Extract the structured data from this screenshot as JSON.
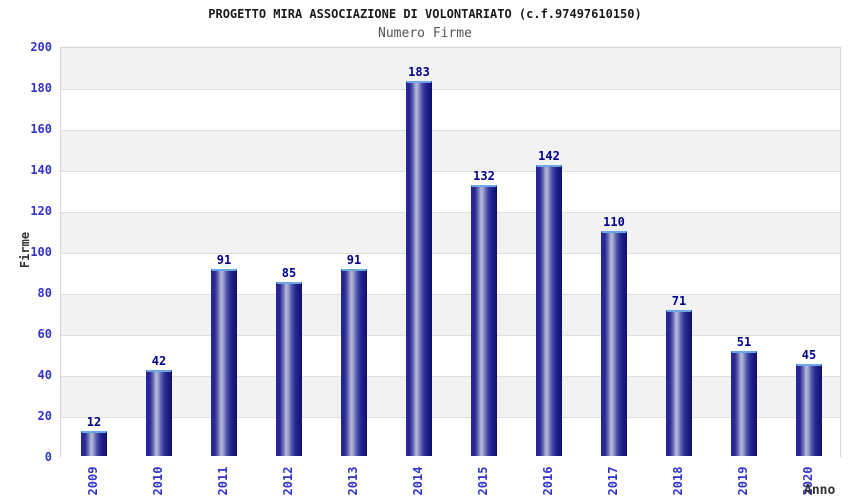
{
  "chart_data": {
    "type": "bar",
    "title": "PROGETTO MIRA ASSOCIAZIONE DI VOLONTARIATO (c.f.97497610150)",
    "subtitle": "Numero Firme",
    "xlabel": "Anno",
    "ylabel": "Firme",
    "categories": [
      "2009",
      "2010",
      "2011",
      "2012",
      "2013",
      "2014",
      "2015",
      "2016",
      "2017",
      "2018",
      "2019",
      "2020"
    ],
    "values": [
      12,
      42,
      91,
      85,
      91,
      183,
      132,
      142,
      110,
      71,
      51,
      45
    ],
    "ylim": [
      0,
      200
    ],
    "ytick_step": 20,
    "yticks": [
      0,
      20,
      40,
      60,
      80,
      100,
      120,
      140,
      160,
      180,
      200
    ],
    "bar_value_labels_shown": true,
    "grid": "alternating horizontal gray/white bands every 20 units, light gray gridlines",
    "legend_position": "none",
    "x_tick_rotation_degrees": 90,
    "colors": {
      "bar_primary": "#00008b",
      "bar_highlight": "#b7bcdc",
      "bar_top_edge": "#6ba7e4",
      "tick_label": "#3232cd",
      "value_label": "#00008b",
      "band_gray": "#f2f2f2",
      "band_white": "#ffffff",
      "plot_border": "#d4d4d4",
      "title_color": "#1a1a1a",
      "subtitle_color": "#555555",
      "axis_title_color": "#333333"
    }
  }
}
